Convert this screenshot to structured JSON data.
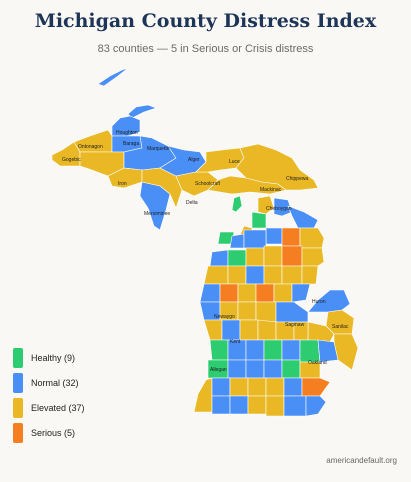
{
  "title": "Michigan County Distress Index",
  "subtitle": "83 counties — 5 in Serious or Crisis distress",
  "colors": {
    "healthy": "#2ecc71",
    "normal": "#4a8ff5",
    "elevated": "#e9b824",
    "serious": "#f57f20",
    "border": "#ffffff",
    "background": "#faf8f4"
  },
  "legend": [
    {
      "key": "healthy",
      "label": "Healthy (9)",
      "color": "#2ecc71"
    },
    {
      "key": "normal",
      "label": "Normal (32)",
      "color": "#4a8ff5"
    },
    {
      "key": "elevated",
      "label": "Elevated (37)",
      "color": "#e9b824"
    },
    {
      "key": "serious",
      "label": "Serious (5)",
      "color": "#f57f20"
    }
  ],
  "county_labels": [
    "Houghton",
    "Ontonagon",
    "Baraga",
    "Marquette",
    "Gogebic",
    "Alger",
    "Luce",
    "Chippewa",
    "Iron",
    "Schoolcraft",
    "Mackinac",
    "Delta",
    "Menominee",
    "Cheboygan",
    "Huron",
    "Newaygo",
    "Sanilac",
    "Saginaw",
    "Kent",
    "Oakland",
    "Allegan"
  ],
  "source": "americandefault.org"
}
